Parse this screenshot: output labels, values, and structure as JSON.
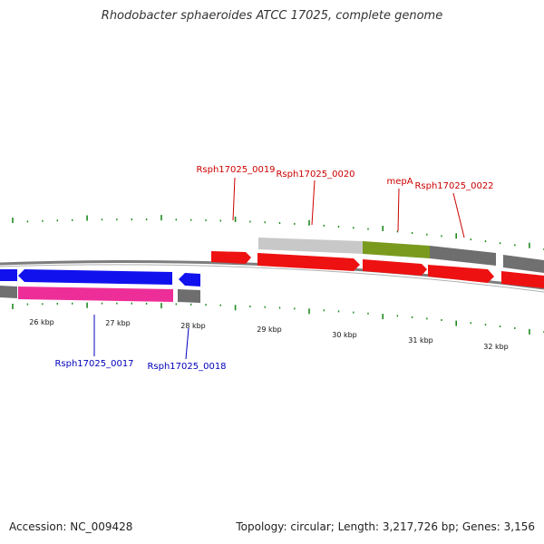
{
  "title": "Rhodobacter sphaeroides ATCC 17025, complete genome",
  "accession_label": "Accession: NC_009428",
  "topology_label": "Topology: circular; Length: 3,217,726 bp; Genes: 3,156",
  "colors": {
    "forward_gene": "#ee1111",
    "reverse_gene": "#1111ee",
    "tick": "#1e8a1e",
    "forward_label": "#cc0000",
    "reverse_label": "#0000bb",
    "track_grey": "#808080",
    "highlight_green": "#7a9a1e",
    "highlight_pink": "#ee2e98",
    "light_grey": "#c8c8c8"
  },
  "scale_labels": [
    "26 kbp",
    "27 kbp",
    "28 kbp",
    "29 kbp",
    "30 kbp",
    "31 kbp",
    "32 kbp"
  ],
  "genes_forward": [
    {
      "name": "Rsph17025_0019",
      "label": "Rsph17025_0019"
    },
    {
      "name": "Rsph17025_0020",
      "label": "Rsph17025_0020"
    },
    {
      "name": "mepA",
      "label": "mepA"
    },
    {
      "name": "Rsph17025_0022",
      "label": "Rsph17025_0022"
    }
  ],
  "genes_reverse": [
    {
      "name": "Rsph17025_0017",
      "label": "Rsph17025_0017"
    },
    {
      "name": "Rsph17025_0018",
      "label": "Rsph17025_0018"
    }
  ]
}
